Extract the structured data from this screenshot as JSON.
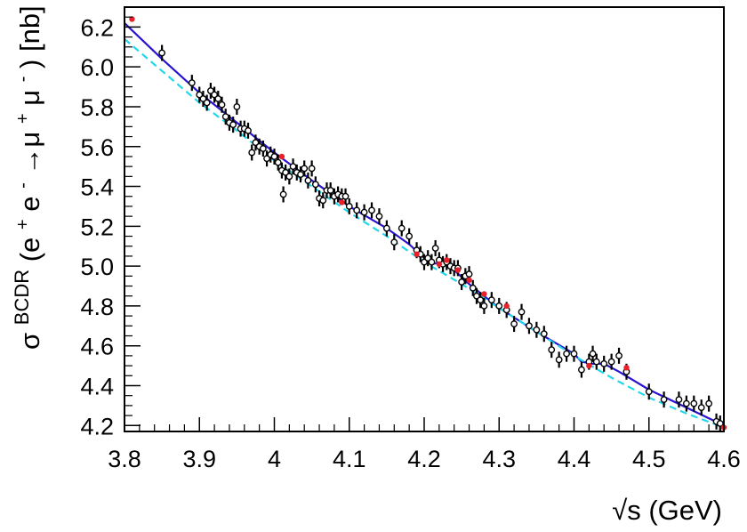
{
  "chart_data": {
    "type": "scatter",
    "title": "",
    "xlabel": "√s (GeV)",
    "ylabel": "σBCDR(e+e-→μ+μ-) [nb]",
    "ylabel_parts": [
      "σ",
      "BCDR",
      "(e",
      "+",
      "e",
      "-",
      "→μ",
      "+",
      "μ",
      "-",
      ") [nb]"
    ],
    "xlim": [
      3.8,
      4.6
    ],
    "ylim": [
      4.17,
      6.3
    ],
    "xticks": [
      3.8,
      3.9,
      4.0,
      4.1,
      4.2,
      4.3,
      4.4,
      4.5,
      4.6
    ],
    "xtick_labels": [
      "3.8",
      "3.9",
      "4",
      "4.1",
      "4.2",
      "4.3",
      "4.4",
      "4.5",
      "4.6"
    ],
    "yticks": [
      4.2,
      4.4,
      4.6,
      4.8,
      5.0,
      5.2,
      5.4,
      5.6,
      5.8,
      6.0,
      6.2
    ],
    "ytick_labels": [
      "4.2",
      "4.4",
      "4.6",
      "4.8",
      "5.0",
      "5.2",
      "5.4",
      "5.6",
      "5.8",
      "6.0",
      "6.2"
    ],
    "grid": false,
    "legend": "none",
    "series": [
      {
        "style": "open-circle-errorbar",
        "color": "#000000",
        "points": [
          [
            3.85,
            6.07
          ],
          [
            3.89,
            5.92
          ],
          [
            3.9,
            5.86
          ],
          [
            3.905,
            5.84
          ],
          [
            3.91,
            5.82
          ],
          [
            3.915,
            5.88
          ],
          [
            3.92,
            5.86
          ],
          [
            3.925,
            5.84
          ],
          [
            3.93,
            5.81
          ],
          [
            3.935,
            5.75
          ],
          [
            3.94,
            5.72
          ],
          [
            3.945,
            5.71
          ],
          [
            3.95,
            5.8
          ],
          [
            3.955,
            5.69
          ],
          [
            3.96,
            5.69
          ],
          [
            3.965,
            5.68
          ],
          [
            3.97,
            5.57
          ],
          [
            3.975,
            5.62
          ],
          [
            3.98,
            5.6
          ],
          [
            3.985,
            5.59
          ],
          [
            3.99,
            5.54
          ],
          [
            3.995,
            5.56
          ],
          [
            4.0,
            5.55
          ],
          [
            4.005,
            5.52
          ],
          [
            4.01,
            5.48
          ],
          [
            4.012,
            5.36
          ],
          [
            4.015,
            5.47
          ],
          [
            4.02,
            5.45
          ],
          [
            4.025,
            5.5
          ],
          [
            4.03,
            5.47
          ],
          [
            4.035,
            5.46
          ],
          [
            4.04,
            5.49
          ],
          [
            4.045,
            5.43
          ],
          [
            4.05,
            5.49
          ],
          [
            4.055,
            5.41
          ],
          [
            4.06,
            5.34
          ],
          [
            4.065,
            5.33
          ],
          [
            4.07,
            5.38
          ],
          [
            4.075,
            5.38
          ],
          [
            4.08,
            5.35
          ],
          [
            4.085,
            5.36
          ],
          [
            4.09,
            5.35
          ],
          [
            4.095,
            5.35
          ],
          [
            4.1,
            5.3
          ],
          [
            4.11,
            5.28
          ],
          [
            4.12,
            5.27
          ],
          [
            4.13,
            5.28
          ],
          [
            4.14,
            5.25
          ],
          [
            4.15,
            5.19
          ],
          [
            4.16,
            5.12
          ],
          [
            4.17,
            5.19
          ],
          [
            4.18,
            5.15
          ],
          [
            4.19,
            5.08
          ],
          [
            4.195,
            5.06
          ],
          [
            4.2,
            5.02
          ],
          [
            4.205,
            5.04
          ],
          [
            4.21,
            5.02
          ],
          [
            4.215,
            5.09
          ],
          [
            4.22,
            5.03
          ],
          [
            4.225,
            5.01
          ],
          [
            4.23,
            5.02
          ],
          [
            4.235,
            5.0
          ],
          [
            4.24,
            4.99
          ],
          [
            4.245,
            4.99
          ],
          [
            4.25,
            4.92
          ],
          [
            4.255,
            4.95
          ],
          [
            4.26,
            4.96
          ],
          [
            4.265,
            4.89
          ],
          [
            4.27,
            4.85
          ],
          [
            4.275,
            4.83
          ],
          [
            4.28,
            4.8
          ],
          [
            4.29,
            4.83
          ],
          [
            4.3,
            4.8
          ],
          [
            4.31,
            4.78
          ],
          [
            4.32,
            4.71
          ],
          [
            4.33,
            4.77
          ],
          [
            4.34,
            4.7
          ],
          [
            4.35,
            4.68
          ],
          [
            4.36,
            4.66
          ],
          [
            4.37,
            4.58
          ],
          [
            4.38,
            4.53
          ],
          [
            4.39,
            4.56
          ],
          [
            4.4,
            4.56
          ],
          [
            4.41,
            4.48
          ],
          [
            4.42,
            4.52
          ],
          [
            4.425,
            4.56
          ],
          [
            4.43,
            4.52
          ],
          [
            4.44,
            4.51
          ],
          [
            4.45,
            4.52
          ],
          [
            4.46,
            4.55
          ],
          [
            4.47,
            4.47
          ],
          [
            4.5,
            4.37
          ],
          [
            4.52,
            4.33
          ],
          [
            4.54,
            4.33
          ],
          [
            4.55,
            4.31
          ],
          [
            4.56,
            4.31
          ],
          [
            4.57,
            4.29
          ],
          [
            4.58,
            4.31
          ],
          [
            4.59,
            4.22
          ],
          [
            4.595,
            4.21
          ]
        ]
      },
      {
        "style": "filled-circle",
        "color": "#e8202a",
        "points": [
          [
            3.81,
            6.24
          ],
          [
            4.01,
            5.55
          ],
          [
            4.09,
            5.32
          ],
          [
            4.19,
            5.06
          ],
          [
            4.22,
            5.01
          ],
          [
            4.23,
            5.03
          ],
          [
            4.245,
            4.98
          ],
          [
            4.26,
            4.93
          ],
          [
            4.28,
            4.86
          ],
          [
            4.31,
            4.8
          ],
          [
            4.42,
            4.5
          ],
          [
            4.47,
            4.49
          ],
          [
            4.6,
            4.19
          ]
        ]
      },
      {
        "style": "solid-line",
        "color": "#2a14d0",
        "points": [
          [
            3.8,
            6.22
          ],
          [
            3.85,
            6.04
          ],
          [
            3.9,
            5.87
          ],
          [
            3.95,
            5.72
          ],
          [
            4.0,
            5.57
          ],
          [
            4.05,
            5.43
          ],
          [
            4.1,
            5.3
          ],
          [
            4.15,
            5.19
          ],
          [
            4.18,
            5.11
          ],
          [
            4.2,
            5.04
          ],
          [
            4.21,
            5.01
          ],
          [
            4.225,
            5.02
          ],
          [
            4.24,
            4.98
          ],
          [
            4.26,
            4.91
          ],
          [
            4.3,
            4.79
          ],
          [
            4.35,
            4.67
          ],
          [
            4.4,
            4.56
          ],
          [
            4.41,
            4.52
          ],
          [
            4.425,
            4.51
          ],
          [
            4.44,
            4.51
          ],
          [
            4.46,
            4.47
          ],
          [
            4.5,
            4.38
          ],
          [
            4.55,
            4.29
          ],
          [
            4.6,
            4.2
          ]
        ]
      },
      {
        "style": "dashed-line",
        "color": "#20d8e8",
        "points": [
          [
            3.8,
            6.14
          ],
          [
            3.85,
            5.98
          ],
          [
            3.9,
            5.82
          ],
          [
            3.95,
            5.68
          ],
          [
            4.0,
            5.53
          ],
          [
            4.05,
            5.4
          ],
          [
            4.1,
            5.27
          ],
          [
            4.15,
            5.15
          ],
          [
            4.2,
            5.02
          ],
          [
            4.25,
            4.91
          ],
          [
            4.3,
            4.79
          ],
          [
            4.35,
            4.67
          ],
          [
            4.4,
            4.55
          ],
          [
            4.45,
            4.44
          ],
          [
            4.5,
            4.34
          ],
          [
            4.55,
            4.26
          ],
          [
            4.6,
            4.19
          ]
        ]
      }
    ]
  }
}
